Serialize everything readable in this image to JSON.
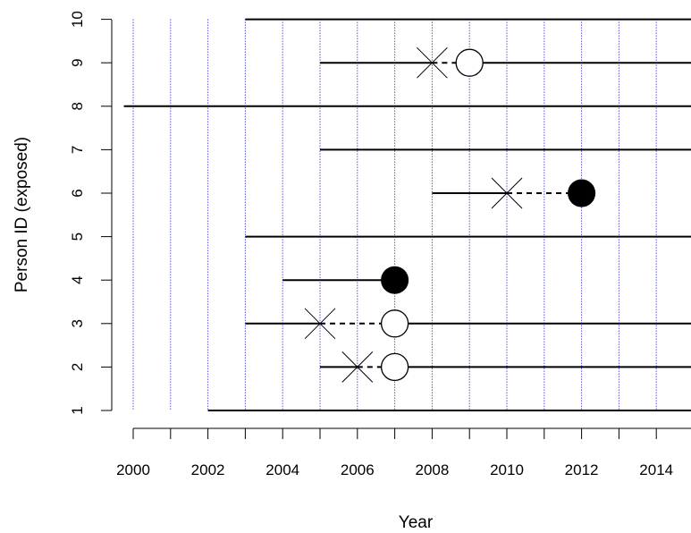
{
  "chart_data": {
    "type": "scatter",
    "xlabel": "Year",
    "ylabel": "Person ID (exposed)",
    "xlim": [
      1999.75,
      2014.85
    ],
    "ylim": [
      1,
      10
    ],
    "x_ticks": [
      2000,
      2001,
      2002,
      2003,
      2004,
      2005,
      2006,
      2007,
      2008,
      2009,
      2010,
      2011,
      2012,
      2013,
      2014
    ],
    "x_tick_labels": [
      "2000",
      "2002",
      "2004",
      "2006",
      "2008",
      "2010",
      "2012",
      "2014"
    ],
    "y_ticks": [
      1,
      2,
      3,
      4,
      5,
      6,
      7,
      8,
      9,
      10
    ],
    "y_tick_labels": [
      "1",
      "2",
      "3",
      "4",
      "5",
      "6",
      "7",
      "8",
      "9",
      "10"
    ],
    "vertical_gridlines": [
      2000,
      2001,
      2002,
      2003,
      2004,
      2005,
      2006,
      2007,
      2008,
      2009,
      2010,
      2011,
      2012,
      2013,
      2014
    ],
    "grid_color": "#0000cc",
    "line_color": "#000000",
    "persons": [
      {
        "id": 1,
        "solid": [
          [
            2002,
            2015
          ]
        ],
        "dashed": [],
        "events": []
      },
      {
        "id": 2,
        "solid": [
          [
            2005,
            2006
          ],
          [
            2007,
            2015
          ]
        ],
        "dashed": [
          [
            2006,
            2007
          ]
        ],
        "events": [
          {
            "type": "cross",
            "x": 2006
          },
          {
            "type": "open-circle",
            "x": 2007
          }
        ]
      },
      {
        "id": 3,
        "solid": [
          [
            2003,
            2005
          ],
          [
            2007,
            2015
          ]
        ],
        "dashed": [
          [
            2005,
            2007
          ]
        ],
        "events": [
          {
            "type": "cross",
            "x": 2005
          },
          {
            "type": "open-circle",
            "x": 2007
          }
        ]
      },
      {
        "id": 4,
        "solid": [
          [
            2004,
            2007
          ]
        ],
        "dashed": [],
        "events": [
          {
            "type": "filled-circle",
            "x": 2007
          }
        ]
      },
      {
        "id": 5,
        "solid": [
          [
            2003,
            2015
          ]
        ],
        "dashed": [],
        "events": []
      },
      {
        "id": 6,
        "solid": [
          [
            2008,
            2010
          ]
        ],
        "dashed": [
          [
            2010,
            2012
          ]
        ],
        "events": [
          {
            "type": "cross",
            "x": 2010
          },
          {
            "type": "filled-circle",
            "x": 2012
          }
        ]
      },
      {
        "id": 7,
        "solid": [
          [
            2005,
            2015
          ]
        ],
        "dashed": [],
        "events": []
      },
      {
        "id": 8,
        "solid": [
          [
            1999.75,
            2015
          ]
        ],
        "dashed": [],
        "events": []
      },
      {
        "id": 9,
        "solid": [
          [
            2005,
            2008
          ],
          [
            2009,
            2015
          ]
        ],
        "dashed": [
          [
            2008,
            2009
          ]
        ],
        "events": [
          {
            "type": "cross",
            "x": 2008
          },
          {
            "type": "open-circle",
            "x": 2009
          }
        ]
      },
      {
        "id": 10,
        "solid": [
          [
            2003,
            2015
          ]
        ],
        "dashed": [],
        "events": []
      }
    ]
  }
}
